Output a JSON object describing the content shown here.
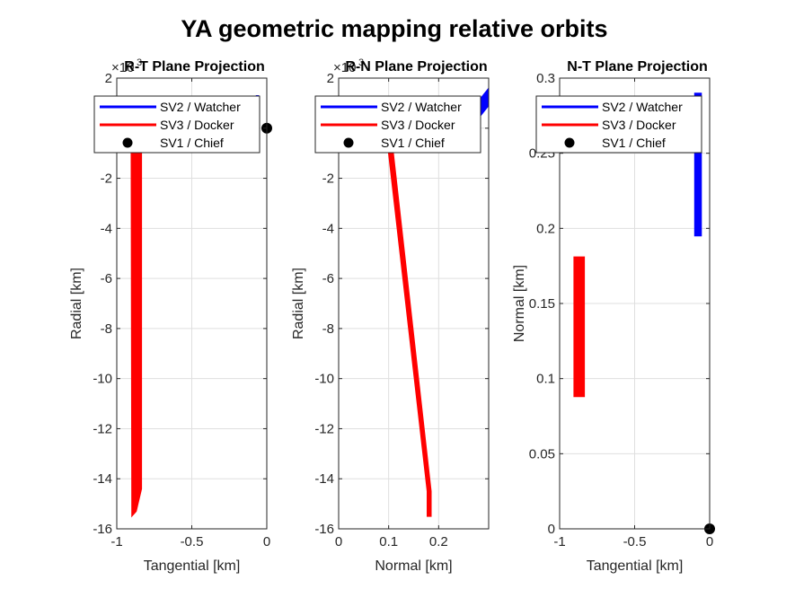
{
  "title": "YA geometric mapping relative orbits",
  "legend": {
    "entries": [
      {
        "label": "SV2 / Watcher",
        "color": "#0000ff",
        "kind": "line"
      },
      {
        "label": "SV3 / Docker",
        "color": "#ff0000",
        "kind": "line"
      },
      {
        "label": "SV1 / Chief",
        "color": "#000000",
        "kind": "marker"
      }
    ]
  },
  "chart_data": [
    {
      "id": "rt",
      "type": "line",
      "title": "R-T Plane Projection",
      "xlabel": "Tangential [km]",
      "ylabel": "Radial [km]",
      "xlim": [
        -1,
        0
      ],
      "ylim": [
        -16,
        2
      ],
      "xticks": [
        -1,
        -0.5,
        0
      ],
      "xtick_labels": [
        "-1",
        "-0.5",
        "0"
      ],
      "yticks": [
        -16,
        -14,
        -12,
        -10,
        -8,
        -6,
        -4,
        -2,
        0,
        2
      ],
      "ytick_labels": [
        "-16",
        "-14",
        "-12",
        "-10",
        "-8",
        "-6",
        "-4",
        "-2",
        "0",
        "2"
      ],
      "y_exponent": "3",
      "grid": true,
      "legend_position": "top",
      "series": [
        {
          "name": "SV2 / Watcher",
          "color": "#0000ff",
          "kind": "band",
          "polygon": [
            [
              -0.07,
              1.3
            ],
            [
              -0.055,
              1.3
            ],
            [
              -0.055,
              0.1
            ],
            [
              -0.07,
              0.1
            ]
          ]
        },
        {
          "name": "SV3 / Docker",
          "color": "#ff0000",
          "kind": "band",
          "polygon": [
            [
              -0.905,
              0.6
            ],
            [
              -0.835,
              0.6
            ],
            [
              -0.835,
              -14.4
            ],
            [
              -0.87,
              -15.3
            ],
            [
              -0.9,
              -15.5
            ]
          ]
        },
        {
          "name": "SV1 / Chief",
          "color": "#000000",
          "kind": "marker",
          "points": [
            [
              0,
              0
            ]
          ]
        }
      ]
    },
    {
      "id": "rn",
      "type": "line",
      "title": "R-N Plane Projection",
      "xlabel": "Normal [km]",
      "ylabel": "Radial [km]",
      "xlim": [
        0,
        0.3
      ],
      "ylim": [
        -16,
        2
      ],
      "xticks": [
        0,
        0.1,
        0.2
      ],
      "xtick_labels": [
        "0",
        "0.1",
        "0.2"
      ],
      "yticks": [
        -16,
        -14,
        -12,
        -10,
        -8,
        -6,
        -4,
        -2,
        0,
        2
      ],
      "ytick_labels": [
        "-16",
        "-14",
        "-12",
        "-10",
        "-8",
        "-6",
        "-4",
        "-2",
        "0",
        "2"
      ],
      "y_exponent": "3",
      "grid": true,
      "legend_position": "top",
      "series": [
        {
          "name": "SV2 / Watcher",
          "color": "#0000ff",
          "kind": "band",
          "polygon": [
            [
              0.28,
              1.1
            ],
            [
              0.3,
              1.6
            ],
            [
              0.3,
              0.9
            ],
            [
              0.28,
              0.4
            ]
          ]
        },
        {
          "name": "SV3 / Docker",
          "color": "#ff0000",
          "kind": "band",
          "polygon": [
            [
              0.09,
              0.7
            ],
            [
              0.1,
              0.7
            ],
            [
              0.185,
              -14.5
            ],
            [
              0.185,
              -15.5
            ],
            [
              0.177,
              -15.5
            ],
            [
              0.177,
              -14.5
            ]
          ]
        },
        {
          "name": "SV1 / Chief",
          "color": "#000000",
          "kind": "marker",
          "points": [
            [
              0,
              0
            ]
          ]
        }
      ]
    },
    {
      "id": "nt",
      "type": "line",
      "title": "N-T Plane Projection",
      "xlabel": "Tangential [km]",
      "ylabel": "Normal [km]",
      "xlim": [
        -1,
        0
      ],
      "ylim": [
        0,
        0.3
      ],
      "xticks": [
        -1,
        -0.5,
        0
      ],
      "xtick_labels": [
        "-1",
        "-0.5",
        "0"
      ],
      "yticks": [
        0,
        0.05,
        0.1,
        0.15,
        0.2,
        0.25,
        0.3
      ],
      "ytick_labels": [
        "0",
        "0.05",
        "0.1",
        "0.15",
        "0.2",
        "0.25",
        "0.3"
      ],
      "y_exponent": "",
      "grid": true,
      "legend_position": "top",
      "series": [
        {
          "name": "SV2 / Watcher",
          "color": "#0000ff",
          "kind": "band",
          "polygon": [
            [
              -0.1,
              0.29
            ],
            [
              -0.055,
              0.29
            ],
            [
              -0.055,
              0.195
            ],
            [
              -0.1,
              0.195
            ]
          ]
        },
        {
          "name": "SV3 / Docker",
          "color": "#ff0000",
          "kind": "band",
          "polygon": [
            [
              -0.905,
              0.181
            ],
            [
              -0.835,
              0.181
            ],
            [
              -0.835,
              0.088
            ],
            [
              -0.905,
              0.088
            ]
          ]
        },
        {
          "name": "SV1 / Chief",
          "color": "#000000",
          "kind": "marker",
          "points": [
            [
              0,
              0
            ]
          ]
        }
      ]
    }
  ]
}
